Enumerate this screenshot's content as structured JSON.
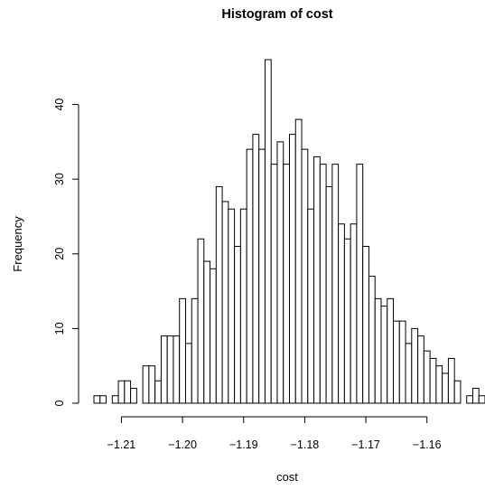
{
  "chart_data": {
    "type": "bar",
    "title": "Histogram of cost",
    "xlabel": "cost",
    "ylabel": "Frequency",
    "x_bin_start": -1.2145,
    "bin_width": 0.001,
    "values": [
      1,
      1,
      0,
      1,
      3,
      3,
      2,
      0,
      5,
      5,
      3,
      9,
      9,
      9,
      14,
      8,
      14,
      22,
      19,
      18,
      29,
      27,
      26,
      21,
      26,
      34,
      36,
      34,
      46,
      32,
      35,
      32,
      36,
      38,
      34,
      26,
      33,
      32,
      29,
      32,
      24,
      22,
      24,
      32,
      21,
      17,
      14,
      13,
      14,
      11,
      11,
      8,
      10,
      9,
      7,
      6,
      5,
      4,
      6,
      3,
      0,
      1,
      2,
      1
    ],
    "xticks": [
      -1.21,
      -1.2,
      -1.19,
      -1.18,
      -1.17,
      -1.16
    ],
    "xtick_labels": [
      "−1.21",
      "−1.20",
      "−1.19",
      "−1.18",
      "−1.17",
      "−1.16"
    ],
    "yticks": [
      0,
      10,
      20,
      30,
      40
    ],
    "ytick_labels": [
      "0",
      "10",
      "20",
      "30",
      "40"
    ],
    "ylim": [
      0,
      46
    ],
    "xlim": [
      -1.2145,
      -1.1505
    ],
    "grid": false,
    "bar_fill": "#ffffff",
    "bar_stroke": "#000000"
  }
}
